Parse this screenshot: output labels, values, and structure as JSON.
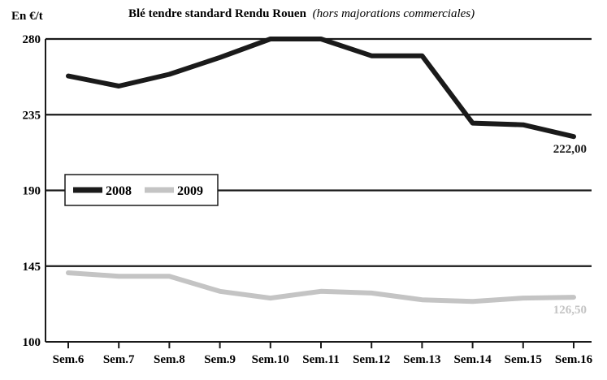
{
  "chart_data": {
    "type": "line",
    "title": "Blé tendre standard Rendu Rouen",
    "subtitle": "(hors majorations commerciales)",
    "ylabel": "En €/t",
    "ylim": [
      100,
      280
    ],
    "yticks": [
      "100",
      "145",
      "190",
      "235",
      "280"
    ],
    "grid": true,
    "legend_position": "center-left",
    "categories": [
      "Sem.6",
      "Sem.7",
      "Sem.8",
      "Sem.9",
      "Sem.10",
      "Sem.11",
      "Sem.12",
      "Sem.13",
      "Sem.14",
      "Sem.15",
      "Sem.16"
    ],
    "series": [
      {
        "name": "2008",
        "color": "#1a1a1a",
        "values": [
          258,
          252,
          259,
          269,
          280,
          280,
          270,
          270,
          230,
          229,
          222
        ],
        "end_label": "222,00"
      },
      {
        "name": "2009",
        "color": "#c4c4c4",
        "values": [
          141,
          139,
          139,
          130,
          126,
          130,
          129,
          125,
          124,
          126,
          126.5
        ],
        "end_label": "126,50"
      }
    ]
  }
}
